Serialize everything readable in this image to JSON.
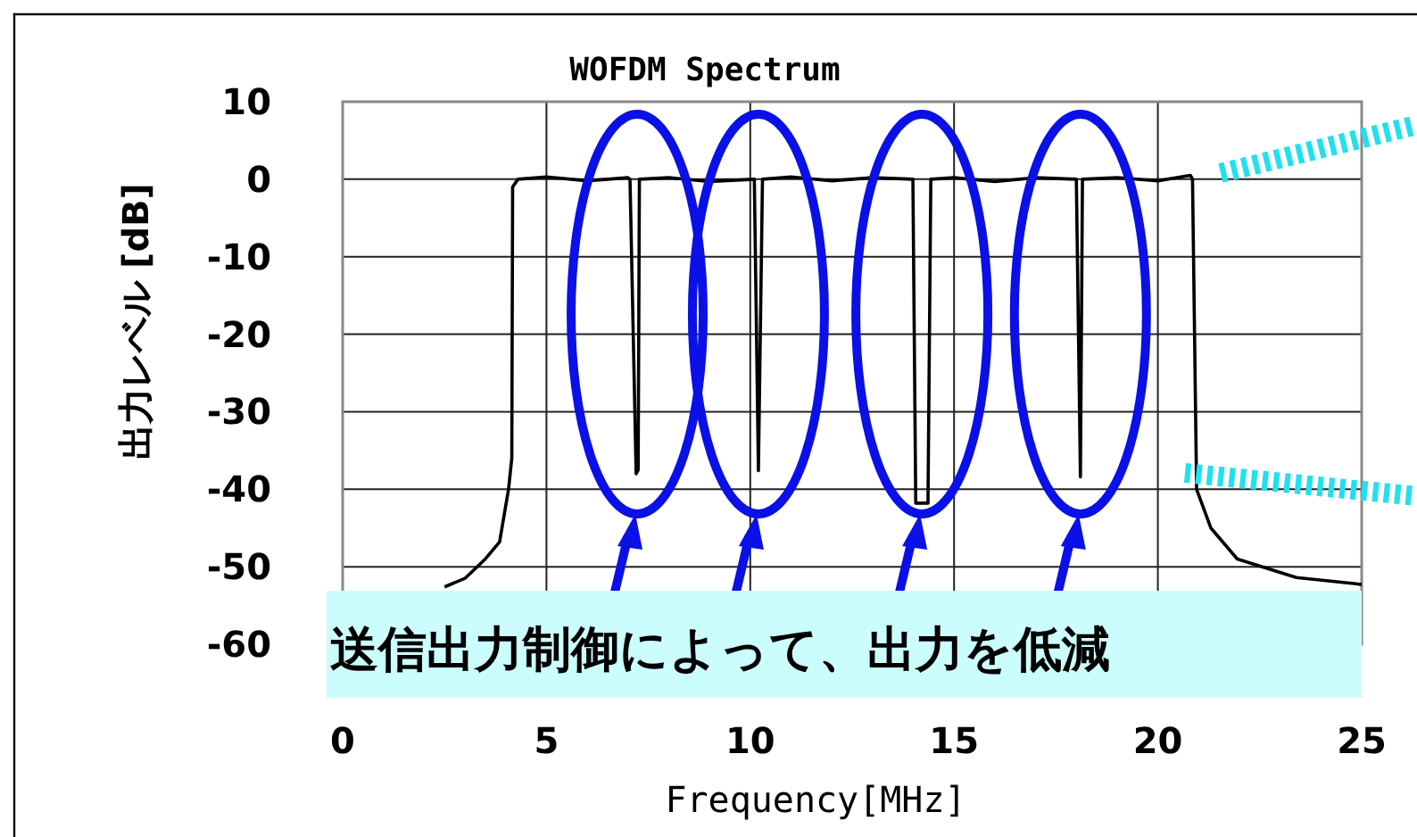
{
  "chart_data": {
    "type": "line",
    "title": "WOFDM Spectrum",
    "xlabel": "Frequency[MHz]",
    "ylabel": "出力レベル [dB]",
    "xlim": [
      0,
      25
    ],
    "ylim": [
      -60,
      10
    ],
    "xticks": [
      0,
      5,
      10,
      15,
      20,
      25
    ],
    "yticks": [
      -60,
      -50,
      -40,
      -30,
      -20,
      -10,
      0,
      10
    ],
    "grid": true,
    "marker": "none",
    "line_style": "solid",
    "annotations": [
      "送信出力制御によって、出力を低減"
    ],
    "series": [
      {
        "color": "#000000",
        "x": [
          2.5,
          3.0,
          3.5,
          3.85,
          4.07,
          4.15,
          4.17,
          4.3,
          5,
          6,
          7.0,
          7.05,
          7.2,
          7.25,
          7.28,
          8,
          9,
          10.1,
          10.2,
          10.3,
          11,
          12,
          13,
          13.99,
          14.06,
          14.36,
          14.43,
          15,
          16,
          17,
          18.0,
          18.1,
          18.15,
          19,
          20,
          20.8,
          20.85,
          20.95,
          21.3,
          21.95,
          23.4,
          24.87,
          25
        ],
        "values": [
          -52.6,
          -51.5,
          -49,
          -46.8,
          -40,
          -36,
          -1,
          0,
          0.3,
          -0.2,
          0.2,
          0,
          -38,
          -37.5,
          0,
          0.2,
          -0.3,
          0,
          -37.6,
          0,
          0.3,
          -0.2,
          0.2,
          0,
          -41.8,
          -41.8,
          0,
          0.2,
          -0.3,
          0.2,
          0,
          -38.4,
          0,
          0.2,
          -0.2,
          0.5,
          0,
          -40,
          -45,
          -49,
          -51.4,
          -52.2,
          -52.3
        ]
      }
    ]
  }
}
